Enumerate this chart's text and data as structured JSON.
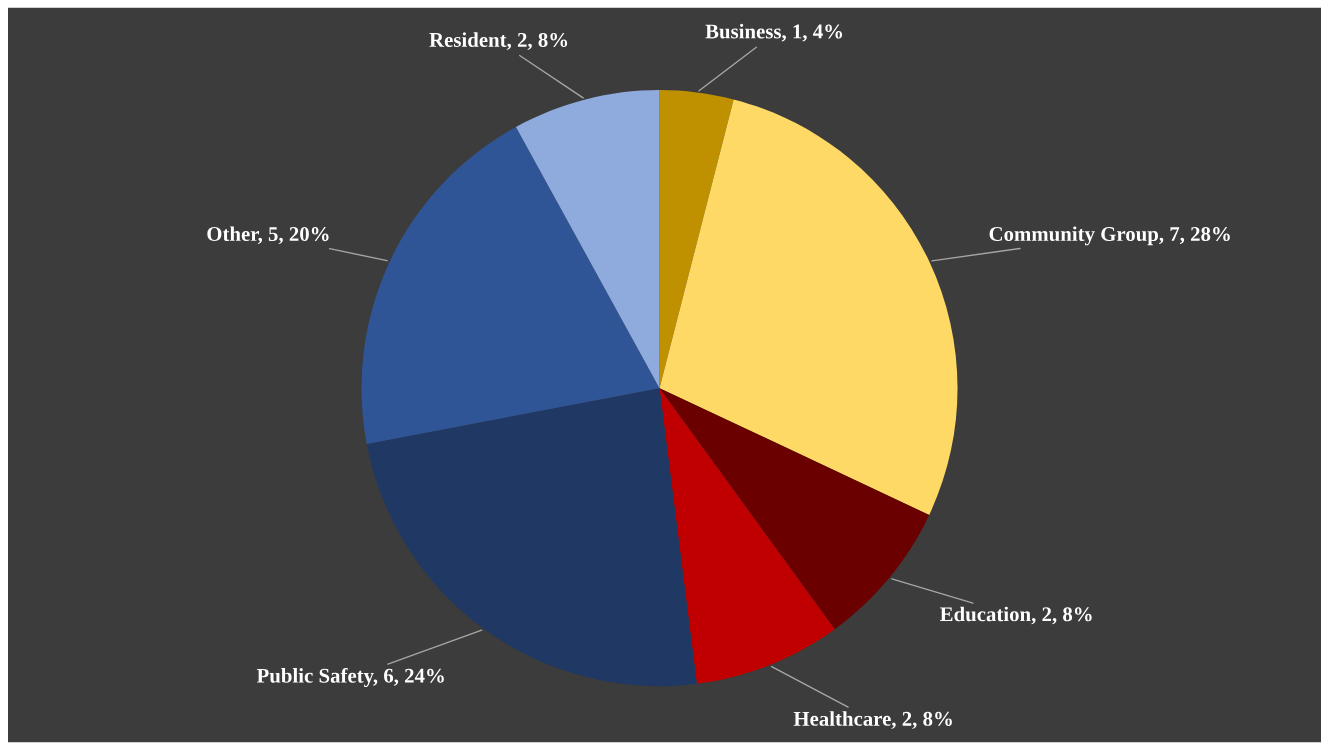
{
  "chart_data": {
    "type": "pie",
    "categories": [
      "Business",
      "Community Group",
      "Education",
      "Healthcare",
      "Public Safety",
      "Other",
      "Resident"
    ],
    "values": [
      1,
      7,
      2,
      2,
      6,
      5,
      2
    ],
    "value_labels": [
      "1, 4%",
      "7, 28%",
      "2, 8%",
      "2, 8%",
      "6, 24%",
      "5, 20%",
      "2, 8%"
    ],
    "colors": [
      "#bf9000",
      "#ffd966",
      "#6b0000",
      "#c00000",
      "#203864",
      "#2f5597",
      "#8faadc"
    ]
  }
}
